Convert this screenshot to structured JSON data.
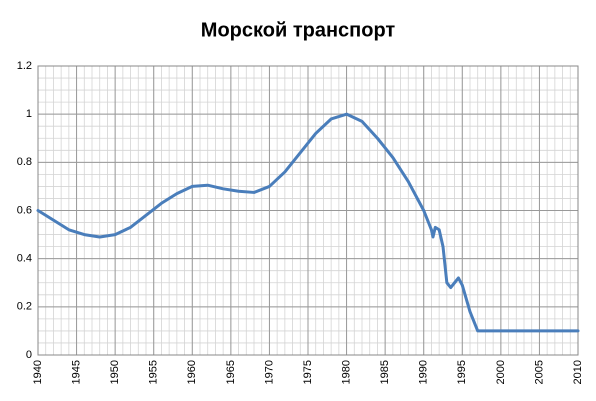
{
  "chart_data": {
    "type": "line",
    "title": "Морской транспорт",
    "series": [
      {
        "color": "#4a7ebb",
        "x": [
          1940,
          1942,
          1944,
          1946,
          1948,
          1950,
          1952,
          1954,
          1956,
          1958,
          1960,
          1962,
          1964,
          1966,
          1968,
          1970,
          1972,
          1974,
          1976,
          1978,
          1980,
          1982,
          1984,
          1986,
          1988,
          1990,
          1991,
          1991.2,
          1991.5,
          1992,
          1992.5,
          1993,
          1993.5,
          1994,
          1994.5,
          1995,
          1996,
          1997,
          1998,
          2000,
          2005,
          2010
        ],
        "values": [
          0.6,
          0.56,
          0.52,
          0.5,
          0.49,
          0.5,
          0.53,
          0.58,
          0.63,
          0.67,
          0.7,
          0.705,
          0.69,
          0.68,
          0.675,
          0.7,
          0.76,
          0.84,
          0.92,
          0.98,
          1.0,
          0.97,
          0.9,
          0.82,
          0.72,
          0.6,
          0.52,
          0.49,
          0.53,
          0.52,
          0.45,
          0.3,
          0.28,
          0.3,
          0.32,
          0.29,
          0.18,
          0.1,
          0.1,
          0.1,
          0.1,
          0.1
        ]
      }
    ],
    "xlim": [
      1940,
      2010
    ],
    "xticks": [
      1940,
      1945,
      1950,
      1955,
      1960,
      1965,
      1970,
      1975,
      1980,
      1985,
      1990,
      1995,
      2000,
      2005,
      2010
    ],
    "ylim": [
      0,
      1.2
    ],
    "yticks": [
      0,
      0.2,
      0.4,
      0.6,
      0.8,
      1,
      1.2
    ],
    "grid": true,
    "minor_grid": true
  }
}
